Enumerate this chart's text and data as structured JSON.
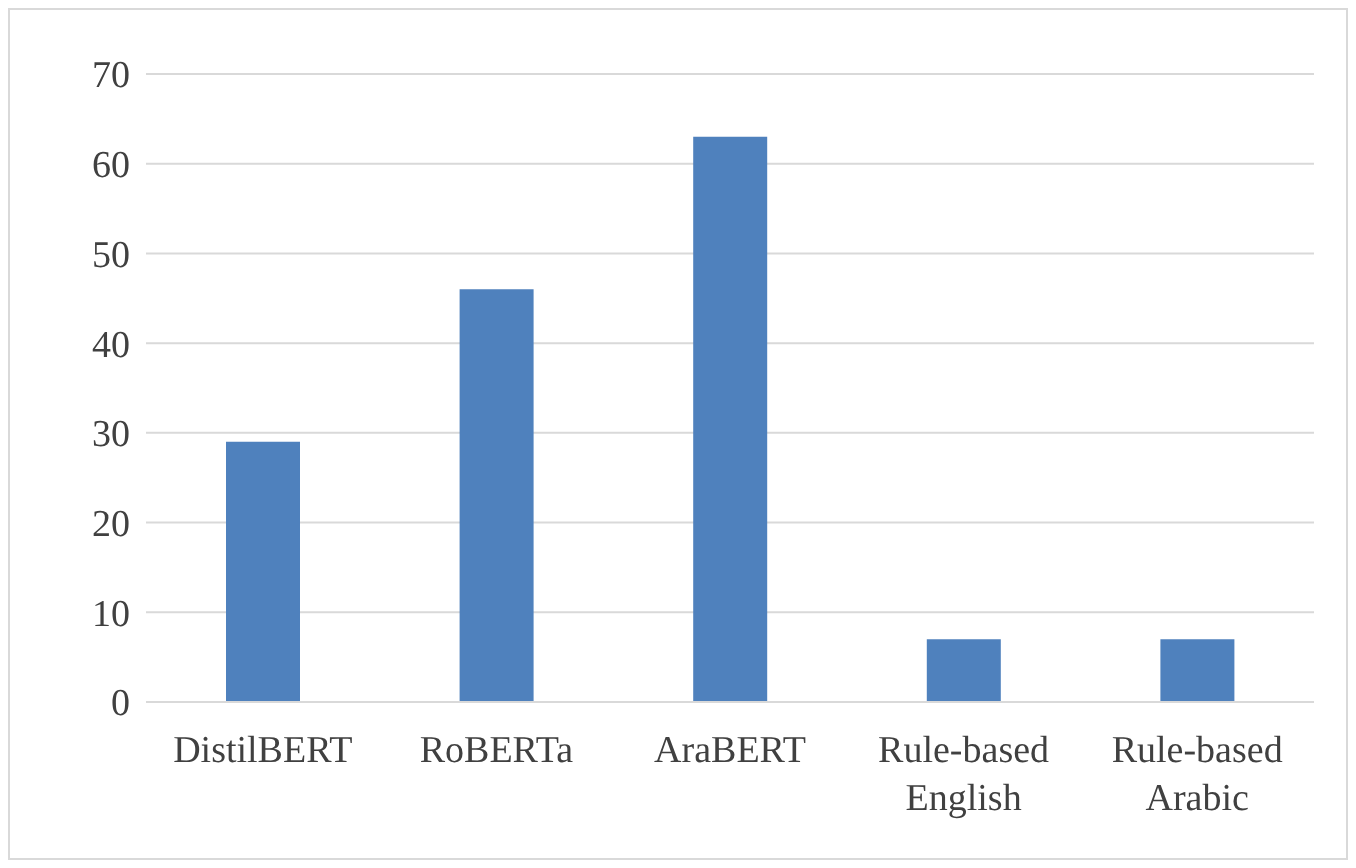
{
  "chart_data": {
    "type": "bar",
    "categories": [
      "DistilBERT",
      "RoBERTa",
      "AraBERT",
      "Rule-based English",
      "Rule-based Arabic"
    ],
    "values": [
      29,
      46,
      63,
      7,
      7
    ],
    "color": "#4f81bd",
    "ylim": [
      0,
      70
    ],
    "yticks": [
      0,
      10,
      20,
      30,
      40,
      50,
      60,
      70
    ],
    "grid": "y",
    "legend": false
  }
}
